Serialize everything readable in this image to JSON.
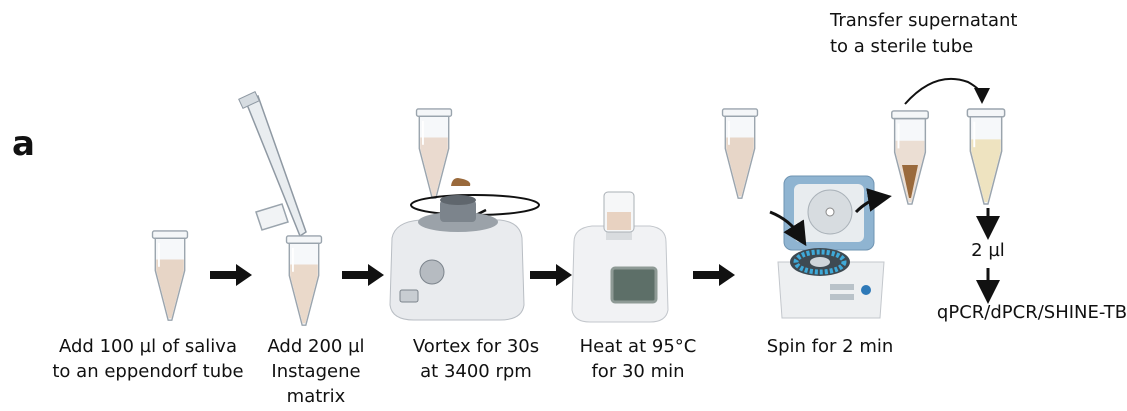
{
  "panel_label": "a",
  "steps": [
    {
      "lines": [
        "Add 100 µl of saliva",
        "to an eppendorf tube"
      ]
    },
    {
      "lines": [
        "Add 200 µl",
        "Instagene",
        "matrix"
      ]
    },
    {
      "lines": [
        "Vortex for 30s",
        "at 3400 rpm"
      ]
    },
    {
      "lines": [
        "Heat at 95°C",
        "for 30 min"
      ]
    },
    {
      "lines": [
        "Spin for 2 min"
      ]
    }
  ],
  "transfer": {
    "lines": [
      "Transfer supernatant",
      "to a sterile tube"
    ]
  },
  "volume": "2 µl",
  "readout": "qPCR/dPCR/SHINE-TB"
}
